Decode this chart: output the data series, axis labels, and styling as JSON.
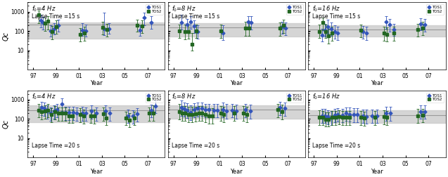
{
  "subplots": [
    {
      "freq": "$f_0$=4 Hz",
      "lapse": "Lapse Time =15 s",
      "lapse_pos": "top",
      "band_lo": 40,
      "band_hi": 280,
      "band_mean": 220,
      "tos1_data": [
        [
          1997.65,
          350,
          700,
          150
        ],
        [
          1997.85,
          280,
          550,
          120
        ],
        [
          1998.5,
          100,
          200,
          50
        ],
        [
          1998.8,
          130,
          260,
          65
        ],
        [
          1999.2,
          200,
          400,
          90
        ],
        [
          2001.3,
          110,
          250,
          55
        ],
        [
          2001.6,
          100,
          220,
          50
        ],
        [
          2003.2,
          130,
          900,
          60
        ],
        [
          2003.6,
          130,
          260,
          70
        ],
        [
          2006.3,
          110,
          200,
          55
        ],
        [
          2006.7,
          500,
          900,
          200
        ],
        [
          2007.3,
          280,
          560,
          130
        ]
      ],
      "tos2_data": [
        [
          1997.5,
          700,
          1100,
          250
        ],
        [
          1998.0,
          250,
          480,
          100
        ],
        [
          1998.3,
          320,
          560,
          120
        ],
        [
          1998.65,
          90,
          180,
          38
        ],
        [
          1999.0,
          170,
          360,
          70
        ],
        [
          2001.1,
          65,
          140,
          28
        ],
        [
          2001.45,
          75,
          170,
          32
        ],
        [
          2003.05,
          150,
          300,
          65
        ],
        [
          2003.45,
          115,
          240,
          50
        ],
        [
          2006.1,
          200,
          400,
          90
        ],
        [
          2006.5,
          180,
          360,
          78
        ]
      ]
    },
    {
      "freq": "$f_0$=8 Hz",
      "lapse": "Lapse Time =15 s",
      "lapse_pos": "top",
      "band_lo": 50,
      "band_hi": 250,
      "band_mean": 150,
      "tos1_data": [
        [
          1997.7,
          280,
          680,
          120
        ],
        [
          1998.2,
          220,
          420,
          100
        ],
        [
          1998.5,
          300,
          580,
          130
        ],
        [
          1998.8,
          180,
          350,
          80
        ],
        [
          1999.1,
          90,
          200,
          40
        ],
        [
          2001.3,
          80,
          190,
          35
        ],
        [
          2003.5,
          310,
          580,
          130
        ],
        [
          2003.8,
          280,
          560,
          120
        ],
        [
          2006.5,
          160,
          300,
          70
        ],
        [
          2006.8,
          140,
          270,
          60
        ]
      ],
      "tos2_data": [
        [
          1997.5,
          100,
          220,
          45
        ],
        [
          1998.0,
          90,
          210,
          38
        ],
        [
          1998.3,
          95,
          210,
          40
        ],
        [
          1998.6,
          20,
          80,
          10
        ],
        [
          1999.0,
          100,
          220,
          42
        ],
        [
          2001.1,
          100,
          210,
          42
        ],
        [
          2003.3,
          140,
          300,
          58
        ],
        [
          2003.6,
          140,
          290,
          58
        ],
        [
          2006.3,
          140,
          280,
          58
        ],
        [
          2006.6,
          190,
          380,
          78
        ]
      ]
    },
    {
      "freq": "$f_0$=16 Hz",
      "lapse": "Lapse Time =15 s",
      "lapse_pos": "top",
      "band_lo": 50,
      "band_hi": 200,
      "band_mean": 120,
      "tos1_data": [
        [
          1997.7,
          60,
          130,
          28
        ],
        [
          1997.95,
          110,
          230,
          50
        ],
        [
          1998.2,
          160,
          370,
          70
        ],
        [
          1998.5,
          130,
          270,
          58
        ],
        [
          1998.8,
          90,
          190,
          40
        ],
        [
          1999.1,
          80,
          170,
          34
        ],
        [
          2001.3,
          90,
          185,
          40
        ],
        [
          2001.6,
          80,
          170,
          34
        ],
        [
          2003.3,
          300,
          580,
          130
        ],
        [
          2003.6,
          220,
          430,
          95
        ],
        [
          2004.0,
          120,
          240,
          55
        ],
        [
          2006.3,
          240,
          460,
          105
        ],
        [
          2006.7,
          220,
          430,
          95
        ]
      ],
      "tos2_data": [
        [
          1997.5,
          95,
          210,
          42
        ],
        [
          1997.75,
          270,
          490,
          108
        ],
        [
          1998.0,
          95,
          210,
          42
        ],
        [
          1998.3,
          55,
          130,
          23
        ],
        [
          1998.6,
          75,
          165,
          32
        ],
        [
          2001.1,
          105,
          215,
          46
        ],
        [
          2003.1,
          75,
          165,
          32
        ],
        [
          2003.4,
          65,
          150,
          28
        ],
        [
          2004.0,
          75,
          162,
          32
        ],
        [
          2006.1,
          115,
          240,
          52
        ],
        [
          2006.5,
          145,
          305,
          62
        ]
      ]
    },
    {
      "freq": "$f_0$=4 Hz",
      "lapse": "Lapse Time =20 s",
      "lapse_pos": "bottom",
      "band_lo": 70,
      "band_hi": 500,
      "band_mean": 280,
      "tos1_data": [
        [
          1997.7,
          400,
          800,
          160
        ],
        [
          1997.95,
          350,
          680,
          140
        ],
        [
          1998.2,
          250,
          500,
          105
        ],
        [
          1998.5,
          200,
          400,
          82
        ],
        [
          1998.8,
          250,
          500,
          100
        ],
        [
          1999.1,
          300,
          600,
          125
        ],
        [
          1999.5,
          600,
          1200,
          250
        ],
        [
          1999.8,
          220,
          440,
          88
        ],
        [
          2000.1,
          220,
          440,
          90
        ],
        [
          2000.5,
          220,
          440,
          90
        ],
        [
          2000.8,
          200,
          410,
          82
        ],
        [
          2001.3,
          200,
          420,
          82
        ],
        [
          2001.6,
          200,
          400,
          80
        ],
        [
          2002.1,
          250,
          500,
          100
        ],
        [
          2002.5,
          200,
          400,
          80
        ],
        [
          2003.3,
          250,
          500,
          100
        ],
        [
          2003.7,
          200,
          400,
          80
        ],
        [
          2005.3,
          150,
          300,
          60
        ],
        [
          2005.7,
          150,
          285,
          58
        ],
        [
          2006.1,
          180,
          370,
          75
        ],
        [
          2007.3,
          280,
          560,
          120
        ],
        [
          2007.7,
          480,
          880,
          195
        ]
      ],
      "tos2_data": [
        [
          1997.5,
          290,
          580,
          118
        ],
        [
          1997.75,
          230,
          460,
          92
        ],
        [
          1998.0,
          260,
          520,
          105
        ],
        [
          1998.3,
          290,
          580,
          118
        ],
        [
          1998.6,
          175,
          370,
          70
        ],
        [
          1998.9,
          230,
          460,
          94
        ],
        [
          1999.2,
          200,
          400,
          80
        ],
        [
          1999.5,
          200,
          400,
          80
        ],
        [
          1999.8,
          200,
          400,
          80
        ],
        [
          2000.1,
          150,
          310,
          60
        ],
        [
          2000.4,
          150,
          310,
          60
        ],
        [
          2001.1,
          175,
          370,
          70
        ],
        [
          2001.4,
          145,
          310,
          58
        ],
        [
          2002.0,
          150,
          310,
          60
        ],
        [
          2002.3,
          145,
          310,
          58
        ],
        [
          2003.1,
          190,
          390,
          78
        ],
        [
          2003.4,
          115,
          250,
          48
        ],
        [
          2005.1,
          115,
          245,
          48
        ],
        [
          2005.4,
          90,
          195,
          38
        ],
        [
          2005.8,
          115,
          248,
          48
        ],
        [
          2007.1,
          195,
          395,
          80
        ],
        [
          2007.5,
          195,
          490,
          80
        ]
      ]
    },
    {
      "freq": "$f_0$=8 Hz",
      "lapse": "Lapse Time =20 s",
      "lapse_pos": "bottom",
      "band_lo": 100,
      "band_hi": 500,
      "band_mean": 300,
      "tos1_data": [
        [
          1997.7,
          380,
          880,
          148
        ],
        [
          1997.95,
          320,
          680,
          128
        ],
        [
          1998.2,
          280,
          640,
          115
        ],
        [
          1998.5,
          220,
          500,
          88
        ],
        [
          1998.8,
          300,
          660,
          122
        ],
        [
          1999.1,
          350,
          700,
          138
        ],
        [
          1999.5,
          360,
          720,
          142
        ],
        [
          1999.8,
          300,
          620,
          122
        ],
        [
          2000.1,
          300,
          610,
          120
        ],
        [
          2000.5,
          290,
          600,
          118
        ],
        [
          2000.8,
          290,
          600,
          118
        ],
        [
          2001.3,
          300,
          680,
          120
        ],
        [
          2001.6,
          250,
          590,
          100
        ],
        [
          2002.1,
          290,
          600,
          118
        ],
        [
          2002.5,
          250,
          560,
          100
        ],
        [
          2003.3,
          310,
          620,
          125
        ],
        [
          2003.7,
          260,
          560,
          104
        ],
        [
          2006.3,
          390,
          780,
          158
        ],
        [
          2006.7,
          350,
          700,
          142
        ]
      ],
      "tos2_data": [
        [
          1997.5,
          240,
          580,
          96
        ],
        [
          1997.75,
          200,
          480,
          80
        ],
        [
          1998.0,
          195,
          475,
          78
        ],
        [
          1998.3,
          175,
          420,
          70
        ],
        [
          1998.6,
          175,
          420,
          70
        ],
        [
          1998.9,
          180,
          430,
          72
        ],
        [
          1999.2,
          195,
          450,
          78
        ],
        [
          1999.5,
          195,
          450,
          78
        ],
        [
          1999.8,
          175,
          420,
          70
        ],
        [
          2000.1,
          148,
          355,
          59
        ],
        [
          2000.4,
          148,
          355,
          59
        ],
        [
          2001.1,
          195,
          450,
          78
        ],
        [
          2001.4,
          175,
          420,
          70
        ],
        [
          2002.3,
          195,
          450,
          78
        ],
        [
          2003.1,
          195,
          450,
          78
        ],
        [
          2003.4,
          175,
          420,
          70
        ],
        [
          2006.1,
          295,
          590,
          118
        ],
        [
          2006.5,
          245,
          540,
          98
        ]
      ]
    },
    {
      "freq": "$f_0$=16 Hz",
      "lapse": "Lapse Time =20 s",
      "lapse_pos": "bottom",
      "band_lo": 60,
      "band_hi": 280,
      "band_mean": 160,
      "tos1_data": [
        [
          1997.7,
          145,
          340,
          62
        ],
        [
          1997.95,
          145,
          325,
          62
        ],
        [
          1998.2,
          128,
          278,
          54
        ],
        [
          1998.5,
          118,
          258,
          50
        ],
        [
          1998.8,
          155,
          345,
          65
        ],
        [
          1999.1,
          175,
          375,
          72
        ],
        [
          1999.5,
          160,
          345,
          65
        ],
        [
          1999.8,
          195,
          400,
          80
        ],
        [
          2000.1,
          175,
          378,
          72
        ],
        [
          2000.5,
          175,
          368,
          70
        ],
        [
          2000.8,
          168,
          355,
          68
        ],
        [
          2001.3,
          148,
          318,
          60
        ],
        [
          2001.6,
          138,
          298,
          55
        ],
        [
          2002.1,
          148,
          318,
          60
        ],
        [
          2002.5,
          148,
          315,
          60
        ],
        [
          2003.3,
          195,
          415,
          82
        ],
        [
          2003.7,
          200,
          415,
          82
        ],
        [
          2006.3,
          248,
          498,
          100
        ],
        [
          2006.7,
          248,
          498,
          100
        ]
      ],
      "tos2_data": [
        [
          1997.5,
          118,
          272,
          50
        ],
        [
          1997.75,
          118,
          265,
          50
        ],
        [
          1998.0,
          98,
          228,
          42
        ],
        [
          1998.3,
          98,
          220,
          42
        ],
        [
          1998.6,
          118,
          265,
          50
        ],
        [
          1998.9,
          118,
          258,
          50
        ],
        [
          1999.2,
          128,
          275,
          52
        ],
        [
          1999.5,
          118,
          265,
          50
        ],
        [
          1999.8,
          118,
          258,
          50
        ],
        [
          2000.1,
          118,
          262,
          50
        ],
        [
          2001.1,
          118,
          258,
          50
        ],
        [
          2001.4,
          108,
          238,
          45
        ],
        [
          2002.3,
          118,
          258,
          50
        ],
        [
          2003.1,
          128,
          278,
          52
        ],
        [
          2003.4,
          118,
          258,
          50
        ],
        [
          2006.1,
          148,
          325,
          62
        ],
        [
          2006.5,
          158,
          335,
          65
        ]
      ]
    }
  ],
  "blue_color": "#3355bb",
  "green_color": "#226622",
  "blue_marker": "D",
  "green_marker": "s",
  "marker_size": 2.5,
  "band_color": "#c8c8c8",
  "band_alpha": 0.75,
  "mean_linecolor": "#999999",
  "xlabel": "Year",
  "ylabel": "Qc",
  "xlim": [
    1996.5,
    2008.5
  ],
  "xticks": [
    1997,
    1999,
    2001,
    2003,
    2005,
    2007
  ],
  "xticklabels": [
    "97",
    "99",
    "01",
    "03",
    "05",
    "07"
  ],
  "fig_width": 6.37,
  "fig_height": 2.52,
  "dpi": 100
}
